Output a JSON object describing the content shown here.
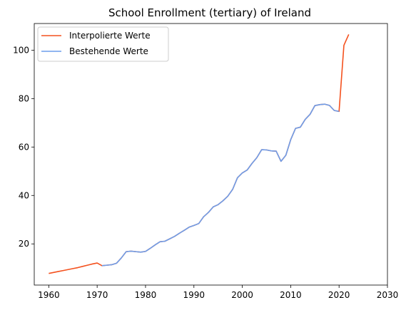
{
  "chart_data": {
    "type": "line",
    "title": "School Enrollment (tertiary) of Ireland",
    "xlabel": "",
    "ylabel": "",
    "xlim": [
      1957,
      2030
    ],
    "ylim": [
      3,
      111
    ],
    "xticks": [
      1960,
      1970,
      1980,
      1990,
      2000,
      2010,
      2020,
      2030
    ],
    "yticks": [
      20,
      40,
      60,
      80,
      100
    ],
    "grid": false,
    "legend_position": "top-left",
    "series": [
      {
        "name": "Interpolierte Werte",
        "color": "#f4511e",
        "x": [
          1960,
          1961,
          1962,
          1963,
          1964,
          1965,
          1966,
          1967,
          1968,
          1969,
          1970,
          1971,
          1972,
          1973,
          1974,
          1975,
          1976,
          1977,
          1978,
          1979,
          1980,
          1981,
          1982,
          1983,
          1984,
          1985,
          1986,
          1987,
          1988,
          1989,
          1990,
          1991,
          1992,
          1993,
          1994,
          1995,
          1996,
          1997,
          1998,
          1999,
          2000,
          2001,
          2002,
          2003,
          2004,
          2005,
          2006,
          2007,
          2008,
          2009,
          2010,
          2011,
          2012,
          2013,
          2014,
          2015,
          2016,
          2017,
          2018,
          2019,
          2020,
          2021,
          2022
        ],
        "y": [
          7.8,
          8.2,
          8.6,
          9.0,
          9.4,
          9.8,
          10.2,
          10.7,
          11.2,
          11.7,
          12.1,
          11.0,
          11.2,
          11.4,
          12.0,
          14.2,
          16.8,
          17.0,
          16.8,
          16.6,
          16.9,
          18.2,
          19.6,
          20.9,
          21.1,
          22.1,
          23.1,
          24.4,
          25.6,
          26.9,
          27.6,
          28.4,
          31.2,
          33.0,
          35.3,
          36.2,
          37.8,
          39.7,
          42.5,
          47.3,
          49.3,
          50.5,
          53.2,
          55.6,
          58.9,
          58.8,
          58.4,
          58.3,
          54.1,
          56.6,
          63.0,
          67.7,
          68.2,
          71.4,
          73.5,
          77.1,
          77.5,
          77.7,
          77.2,
          75.1,
          74.7,
          102.0,
          106.5
        ]
      },
      {
        "name": "Bestehende Werte",
        "color": "#6d9eeb",
        "x": [
          1971,
          1972,
          1973,
          1974,
          1975,
          1976,
          1977,
          1978,
          1979,
          1980,
          1981,
          1982,
          1983,
          1984,
          1985,
          1986,
          1987,
          1988,
          1989,
          1990,
          1991,
          1992,
          1993,
          1994,
          1995,
          1996,
          1997,
          1998,
          1999,
          2000,
          2001,
          2002,
          2003,
          2004,
          2005,
          2006,
          2007,
          2008,
          2009,
          2010,
          2011,
          2012,
          2013,
          2014,
          2015,
          2016,
          2017,
          2018,
          2019,
          2020
        ],
        "y": [
          11.0,
          11.2,
          11.4,
          12.0,
          14.2,
          16.8,
          17.0,
          16.8,
          16.6,
          16.9,
          18.2,
          19.6,
          20.9,
          21.1,
          22.1,
          23.1,
          24.4,
          25.6,
          26.9,
          27.6,
          28.4,
          31.2,
          33.0,
          35.3,
          36.2,
          37.8,
          39.7,
          42.5,
          47.3,
          49.3,
          50.5,
          53.2,
          55.6,
          58.9,
          58.8,
          58.4,
          58.3,
          54.1,
          56.6,
          63.0,
          67.7,
          68.2,
          71.4,
          73.5,
          77.1,
          77.5,
          77.7,
          77.2,
          75.1,
          74.7
        ]
      }
    ]
  }
}
